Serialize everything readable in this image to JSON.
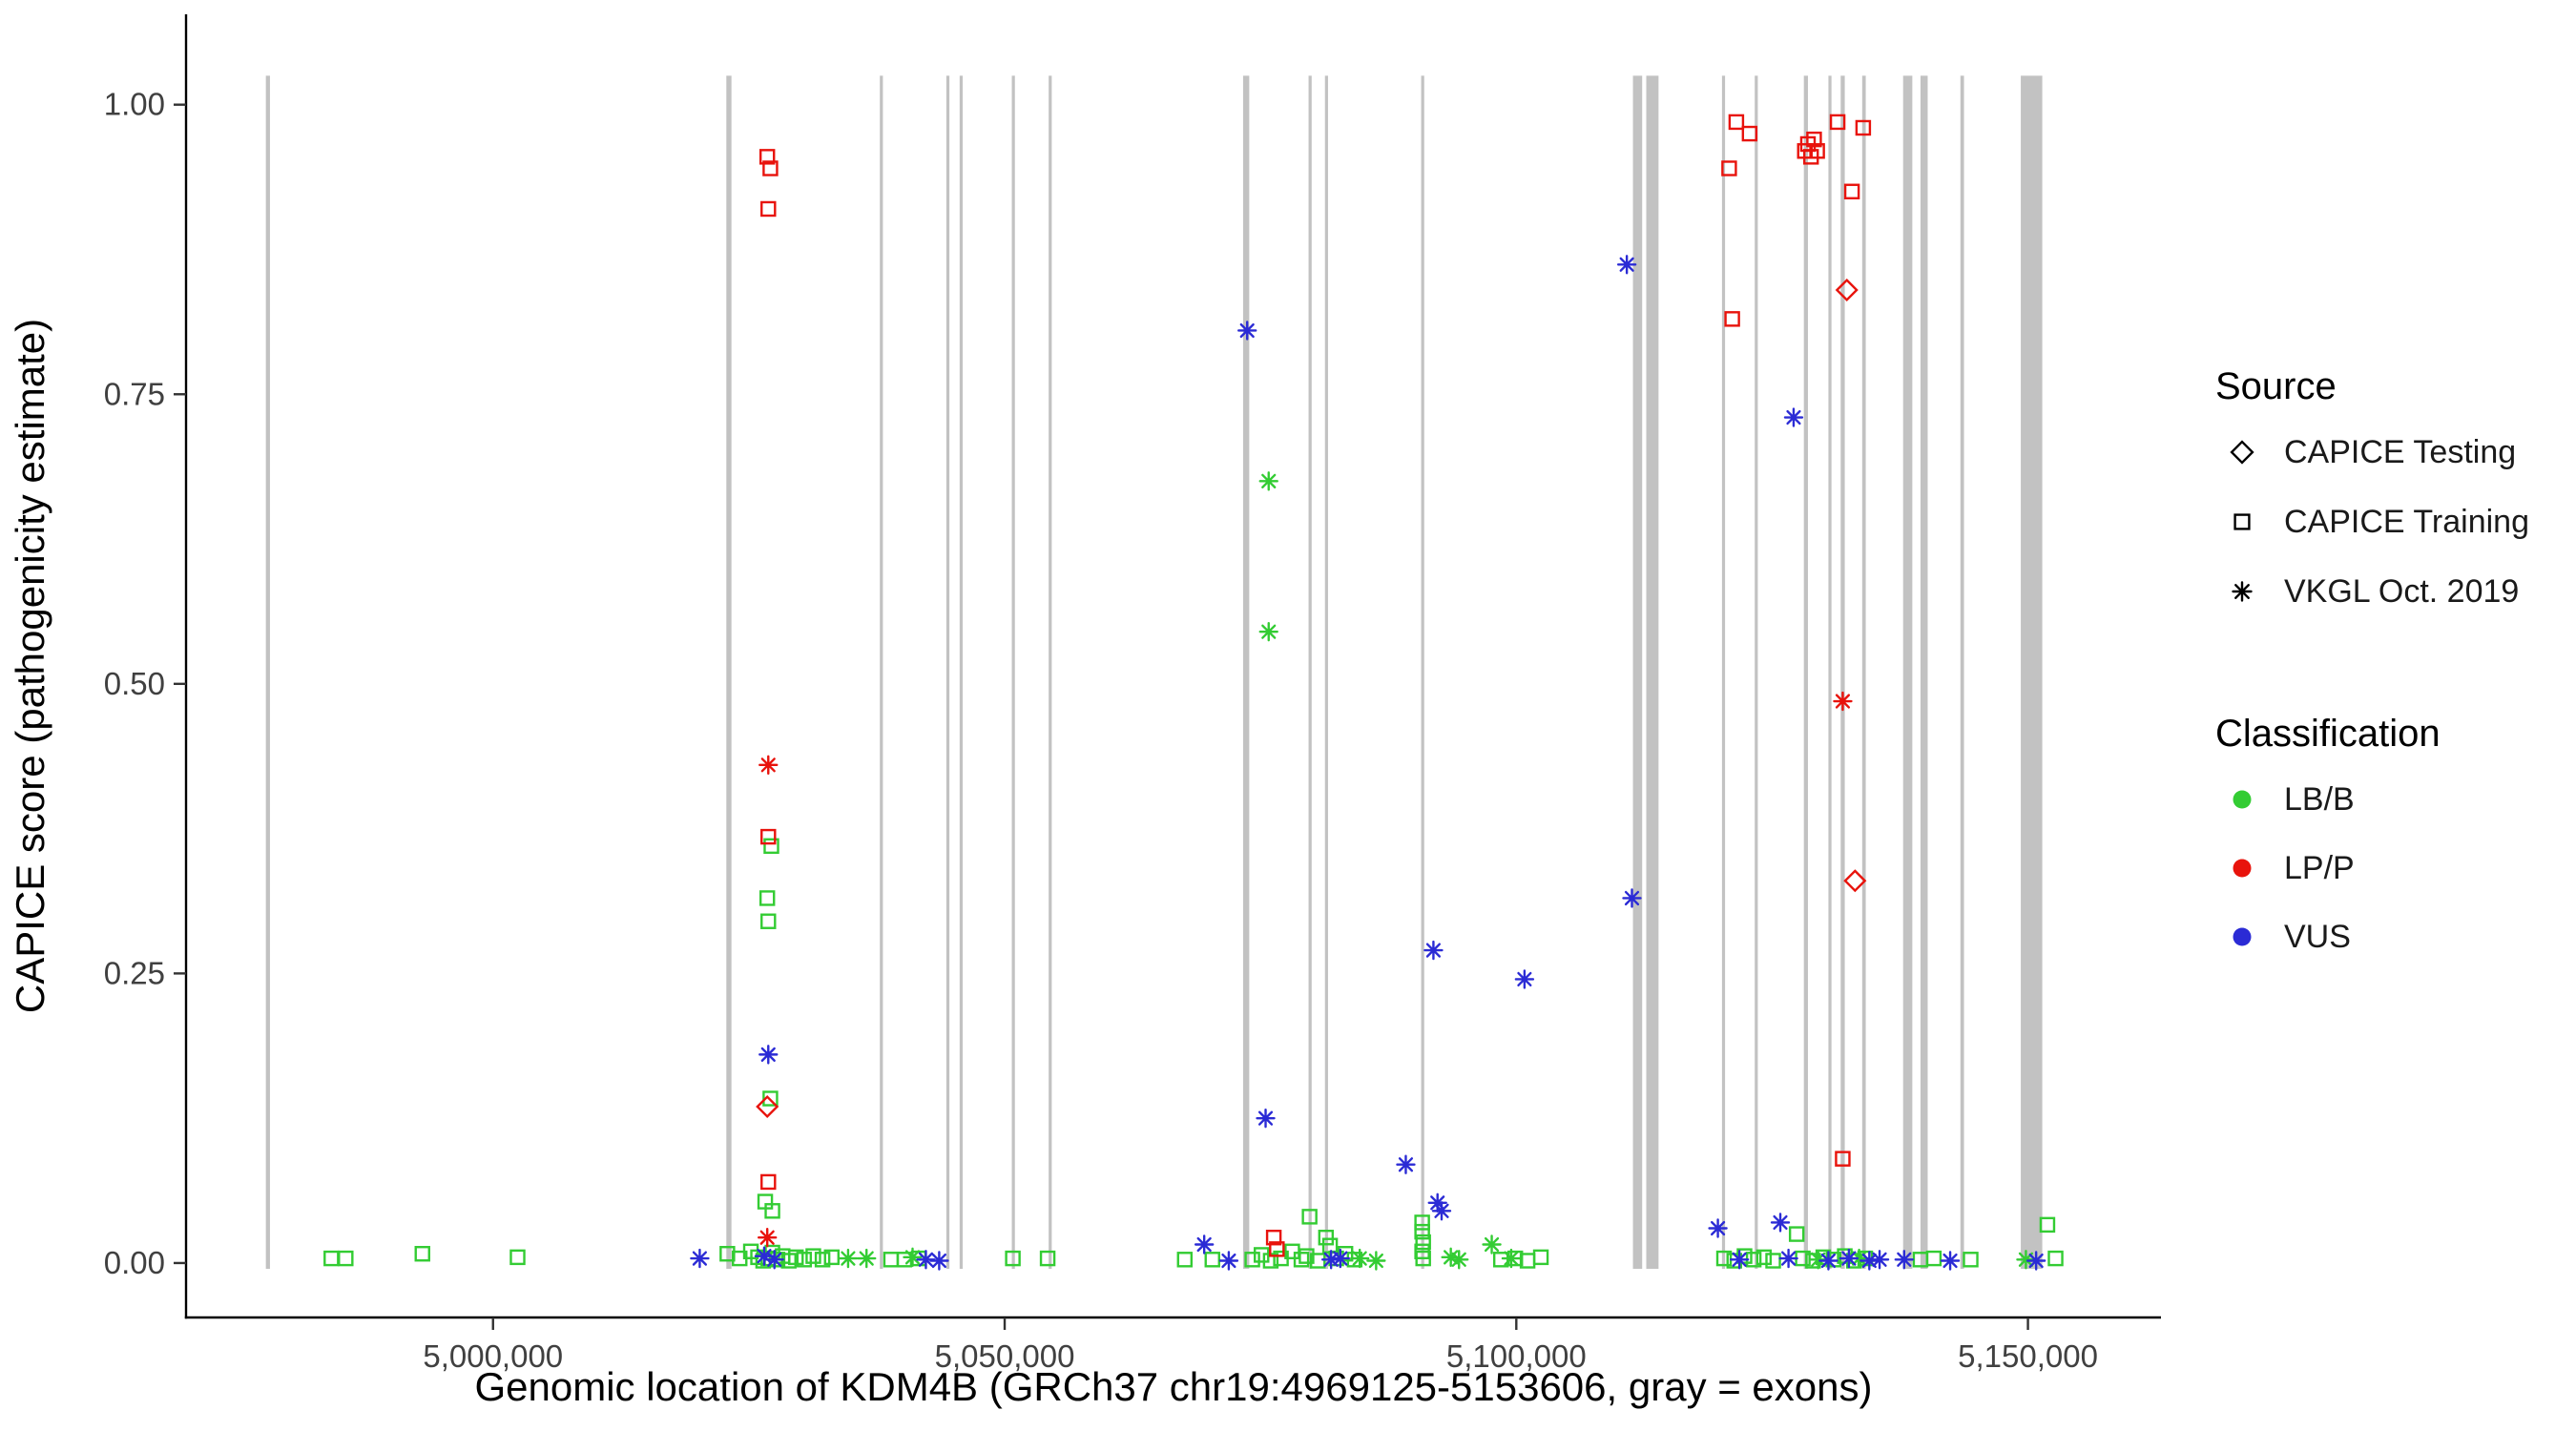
{
  "legend": {
    "source": {
      "title": "Source",
      "items": [
        {
          "label": "CAPICE Testing",
          "shape": "diamond"
        },
        {
          "label": "CAPICE Training",
          "shape": "square"
        },
        {
          "label": "VKGL Oct. 2019",
          "shape": "asterisk"
        }
      ]
    },
    "classification": {
      "title": "Classification",
      "items": [
        {
          "label": "LB/B",
          "color": "#33cc33"
        },
        {
          "label": "LP/P",
          "color": "#e8130c"
        },
        {
          "label": "VUS",
          "color": "#2b2bd5"
        }
      ]
    }
  },
  "chart_data": {
    "type": "scatter",
    "title": "",
    "xlabel": "Genomic location of KDM4B (GRCh37 chr19:4969125-5153606, gray = exons)",
    "ylabel": "CAPICE score (pathogenicity estimate)",
    "xlim": [
      4970000,
      5163000
    ],
    "ylim": [
      -0.047,
      1.078
    ],
    "x_ticks": [
      {
        "value": 5000000,
        "label": "5,000,000"
      },
      {
        "value": 5050000,
        "label": "5,050,000"
      },
      {
        "value": 5100000,
        "label": "5,100,000"
      },
      {
        "value": 5150000,
        "label": "5,150,000"
      }
    ],
    "y_ticks": [
      {
        "value": 0.0,
        "label": "0.00"
      },
      {
        "value": 0.25,
        "label": "0.25"
      },
      {
        "value": 0.5,
        "label": "0.50"
      },
      {
        "value": 0.75,
        "label": "0.75"
      },
      {
        "value": 1.0,
        "label": "1.00"
      }
    ],
    "colors": {
      "LB/B": "#33cc33",
      "LP/P": "#e8130c",
      "VUS": "#2b2bd5"
    },
    "shapes": {
      "testing": "diamond",
      "training": "square",
      "vkgl": "asterisk"
    },
    "exon_color": "#c2c2c2",
    "exons": [
      [
        4977800,
        4978200
      ],
      [
        5022800,
        5023300
      ],
      [
        5037800,
        5038100
      ],
      [
        5044300,
        5044600
      ],
      [
        5045600,
        5045900
      ],
      [
        5050700,
        5051000
      ],
      [
        5054300,
        5054600
      ],
      [
        5073300,
        5073900
      ],
      [
        5079700,
        5080000
      ],
      [
        5081300,
        5081600
      ],
      [
        5090700,
        5091000
      ],
      [
        5111400,
        5112300
      ],
      [
        5112700,
        5113900
      ],
      [
        5120100,
        5120400
      ],
      [
        5123300,
        5123600
      ],
      [
        5128100,
        5128500
      ],
      [
        5130500,
        5130800
      ],
      [
        5131700,
        5132100
      ],
      [
        5133800,
        5134150
      ],
      [
        5137800,
        5138700
      ],
      [
        5139500,
        5140200
      ],
      [
        5143400,
        5143750
      ],
      [
        5149300,
        5151400
      ]
    ],
    "points": [
      [
        4984200,
        0.004,
        "LB/B",
        "training"
      ],
      [
        4985600,
        0.004,
        "LB/B",
        "training"
      ],
      [
        4993100,
        0.008,
        "LB/B",
        "training"
      ],
      [
        5002400,
        0.005,
        "LB/B",
        "training"
      ],
      [
        5022900,
        0.008,
        "LB/B",
        "training"
      ],
      [
        5024100,
        0.004,
        "LB/B",
        "training"
      ],
      [
        5025200,
        0.01,
        "LB/B",
        "training"
      ],
      [
        5025900,
        0.005,
        "LB/B",
        "training"
      ],
      [
        5026400,
        0.002,
        "LB/B",
        "training"
      ],
      [
        5026900,
        0.004,
        "LB/B",
        "training"
      ],
      [
        5027300,
        0.009,
        "LB/B",
        "training"
      ],
      [
        5027800,
        0.003,
        "LB/B",
        "training"
      ],
      [
        5028300,
        0.006,
        "LB/B",
        "training"
      ],
      [
        5028900,
        0.002,
        "LB/B",
        "training"
      ],
      [
        5029600,
        0.005,
        "LB/B",
        "training"
      ],
      [
        5030400,
        0.003,
        "LB/B",
        "training"
      ],
      [
        5031300,
        0.006,
        "LB/B",
        "training"
      ],
      [
        5032200,
        0.003,
        "LB/B",
        "training"
      ],
      [
        5033100,
        0.005,
        "LB/B",
        "training"
      ],
      [
        5026600,
        0.053,
        "LB/B",
        "training"
      ],
      [
        5027300,
        0.045,
        "LB/B",
        "training"
      ],
      [
        5026800,
        0.315,
        "LB/B",
        "training"
      ],
      [
        5026900,
        0.295,
        "LB/B",
        "training"
      ],
      [
        5027200,
        0.36,
        "LB/B",
        "training"
      ],
      [
        5027100,
        0.142,
        "LB/B",
        "training"
      ],
      [
        5038900,
        0.003,
        "LB/B",
        "training"
      ],
      [
        5040200,
        0.003,
        "LB/B",
        "training"
      ],
      [
        5041600,
        0.004,
        "LB/B",
        "training"
      ],
      [
        5050800,
        0.004,
        "LB/B",
        "training"
      ],
      [
        5054200,
        0.004,
        "LB/B",
        "training"
      ],
      [
        5067600,
        0.003,
        "LB/B",
        "training"
      ],
      [
        5070300,
        0.003,
        "LB/B",
        "training"
      ],
      [
        5074200,
        0.003,
        "LB/B",
        "training"
      ],
      [
        5075100,
        0.007,
        "LB/B",
        "training"
      ],
      [
        5076000,
        0.002,
        "LB/B",
        "training"
      ],
      [
        5077000,
        0.004,
        "LB/B",
        "training"
      ],
      [
        5078100,
        0.01,
        "LB/B",
        "training"
      ],
      [
        5079000,
        0.003,
        "LB/B",
        "training"
      ],
      [
        5079500,
        0.006,
        "LB/B",
        "training"
      ],
      [
        5079800,
        0.04,
        "LB/B",
        "training"
      ],
      [
        5080600,
        0.002,
        "LB/B",
        "training"
      ],
      [
        5081400,
        0.022,
        "LB/B",
        "training"
      ],
      [
        5081800,
        0.015,
        "LB/B",
        "training"
      ],
      [
        5082400,
        0.004,
        "LB/B",
        "training"
      ],
      [
        5083300,
        0.008,
        "LB/B",
        "training"
      ],
      [
        5084200,
        0.003,
        "LB/B",
        "training"
      ],
      [
        5090800,
        0.035,
        "LB/B",
        "training"
      ],
      [
        5090800,
        0.027,
        "LB/B",
        "training"
      ],
      [
        5090900,
        0.018,
        "LB/B",
        "training"
      ],
      [
        5090800,
        0.01,
        "LB/B",
        "training"
      ],
      [
        5090900,
        0.004,
        "LB/B",
        "training"
      ],
      [
        5098500,
        0.003,
        "LB/B",
        "training"
      ],
      [
        5099900,
        0.004,
        "LB/B",
        "training"
      ],
      [
        5101100,
        0.002,
        "LB/B",
        "training"
      ],
      [
        5102400,
        0.005,
        "LB/B",
        "training"
      ],
      [
        5120300,
        0.004,
        "LB/B",
        "training"
      ],
      [
        5121300,
        0.002,
        "LB/B",
        "training"
      ],
      [
        5122300,
        0.006,
        "LB/B",
        "training"
      ],
      [
        5123200,
        0.003,
        "LB/B",
        "training"
      ],
      [
        5124200,
        0.005,
        "LB/B",
        "training"
      ],
      [
        5125100,
        0.002,
        "LB/B",
        "training"
      ],
      [
        5127400,
        0.025,
        "LB/B",
        "training"
      ],
      [
        5128000,
        0.004,
        "LB/B",
        "training"
      ],
      [
        5129000,
        0.002,
        "LB/B",
        "training"
      ],
      [
        5130000,
        0.005,
        "LB/B",
        "training"
      ],
      [
        5131000,
        0.003,
        "LB/B",
        "training"
      ],
      [
        5132100,
        0.006,
        "LB/B",
        "training"
      ],
      [
        5133000,
        0.002,
        "LB/B",
        "training"
      ],
      [
        5134100,
        0.004,
        "LB/B",
        "training"
      ],
      [
        5139500,
        0.003,
        "LB/B",
        "training"
      ],
      [
        5140800,
        0.004,
        "LB/B",
        "training"
      ],
      [
        5144400,
        0.003,
        "LB/B",
        "training"
      ],
      [
        5151900,
        0.033,
        "LB/B",
        "training"
      ],
      [
        5152700,
        0.004,
        "LB/B",
        "training"
      ],
      [
        5034700,
        0.004,
        "LB/B",
        "vkgl"
      ],
      [
        5036500,
        0.004,
        "LB/B",
        "vkgl"
      ],
      [
        5041000,
        0.005,
        "LB/B",
        "vkgl"
      ],
      [
        5075800,
        0.675,
        "LB/B",
        "vkgl"
      ],
      [
        5075800,
        0.545,
        "LB/B",
        "vkgl"
      ],
      [
        5084700,
        0.004,
        "LB/B",
        "vkgl"
      ],
      [
        5086300,
        0.002,
        "LB/B",
        "vkgl"
      ],
      [
        5093600,
        0.005,
        "LB/B",
        "vkgl"
      ],
      [
        5094400,
        0.003,
        "LB/B",
        "vkgl"
      ],
      [
        5097600,
        0.016,
        "LB/B",
        "vkgl"
      ],
      [
        5099500,
        0.004,
        "LB/B",
        "vkgl"
      ],
      [
        5129500,
        0.003,
        "LB/B",
        "vkgl"
      ],
      [
        5133500,
        0.004,
        "LB/B",
        "vkgl"
      ],
      [
        5149800,
        0.003,
        "LB/B",
        "vkgl"
      ],
      [
        5026800,
        0.955,
        "LP/P",
        "training"
      ],
      [
        5027100,
        0.945,
        "LP/P",
        "training"
      ],
      [
        5026900,
        0.91,
        "LP/P",
        "training"
      ],
      [
        5026900,
        0.368,
        "LP/P",
        "training"
      ],
      [
        5026900,
        0.07,
        "LP/P",
        "training"
      ],
      [
        5076300,
        0.022,
        "LP/P",
        "training"
      ],
      [
        5076600,
        0.012,
        "LP/P",
        "training"
      ],
      [
        5121500,
        0.985,
        "LP/P",
        "training"
      ],
      [
        5122800,
        0.975,
        "LP/P",
        "training"
      ],
      [
        5120800,
        0.945,
        "LP/P",
        "training"
      ],
      [
        5121100,
        0.815,
        "LP/P",
        "training"
      ],
      [
        5128200,
        0.96,
        "LP/P",
        "training"
      ],
      [
        5128500,
        0.966,
        "LP/P",
        "training"
      ],
      [
        5128800,
        0.955,
        "LP/P",
        "training"
      ],
      [
        5129100,
        0.97,
        "LP/P",
        "training"
      ],
      [
        5129400,
        0.96,
        "LP/P",
        "training"
      ],
      [
        5131400,
        0.985,
        "LP/P",
        "training"
      ],
      [
        5133900,
        0.98,
        "LP/P",
        "training"
      ],
      [
        5132800,
        0.925,
        "LP/P",
        "training"
      ],
      [
        5131900,
        0.09,
        "LP/P",
        "training"
      ],
      [
        5026900,
        0.43,
        "LP/P",
        "vkgl"
      ],
      [
        5026800,
        0.022,
        "LP/P",
        "vkgl"
      ],
      [
        5131900,
        0.485,
        "LP/P",
        "vkgl"
      ],
      [
        5026800,
        0.135,
        "LP/P",
        "testing"
      ],
      [
        5132300,
        0.84,
        "LP/P",
        "testing"
      ],
      [
        5133100,
        0.33,
        "LP/P",
        "testing"
      ],
      [
        5020200,
        0.004,
        "VUS",
        "vkgl"
      ],
      [
        5026900,
        0.18,
        "VUS",
        "vkgl"
      ],
      [
        5026500,
        0.006,
        "VUS",
        "vkgl"
      ],
      [
        5027500,
        0.003,
        "VUS",
        "vkgl"
      ],
      [
        5042300,
        0.003,
        "VUS",
        "vkgl"
      ],
      [
        5043600,
        0.002,
        "VUS",
        "vkgl"
      ],
      [
        5069500,
        0.016,
        "VUS",
        "vkgl"
      ],
      [
        5071900,
        0.002,
        "VUS",
        "vkgl"
      ],
      [
        5073700,
        0.805,
        "VUS",
        "vkgl"
      ],
      [
        5075500,
        0.125,
        "VUS",
        "vkgl"
      ],
      [
        5081900,
        0.003,
        "VUS",
        "vkgl"
      ],
      [
        5082800,
        0.004,
        "VUS",
        "vkgl"
      ],
      [
        5089200,
        0.085,
        "VUS",
        "vkgl"
      ],
      [
        5091900,
        0.27,
        "VUS",
        "vkgl"
      ],
      [
        5092300,
        0.052,
        "VUS",
        "vkgl"
      ],
      [
        5092700,
        0.045,
        "VUS",
        "vkgl"
      ],
      [
        5100800,
        0.245,
        "VUS",
        "vkgl"
      ],
      [
        5110800,
        0.862,
        "VUS",
        "vkgl"
      ],
      [
        5111300,
        0.315,
        "VUS",
        "vkgl"
      ],
      [
        5119700,
        0.03,
        "VUS",
        "vkgl"
      ],
      [
        5125800,
        0.035,
        "VUS",
        "vkgl"
      ],
      [
        5127100,
        0.73,
        "VUS",
        "vkgl"
      ],
      [
        5121800,
        0.003,
        "VUS",
        "vkgl"
      ],
      [
        5126600,
        0.004,
        "VUS",
        "vkgl"
      ],
      [
        5130500,
        0.002,
        "VUS",
        "vkgl"
      ],
      [
        5132500,
        0.004,
        "VUS",
        "vkgl"
      ],
      [
        5134500,
        0.002,
        "VUS",
        "vkgl"
      ],
      [
        5135500,
        0.003,
        "VUS",
        "vkgl"
      ],
      [
        5137900,
        0.003,
        "VUS",
        "vkgl"
      ],
      [
        5142400,
        0.002,
        "VUS",
        "vkgl"
      ],
      [
        5150800,
        0.002,
        "VUS",
        "vkgl"
      ]
    ]
  }
}
